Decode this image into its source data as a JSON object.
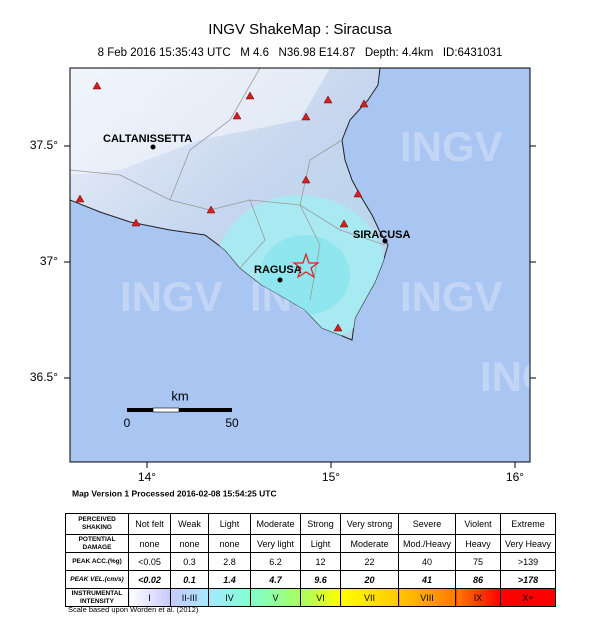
{
  "header": {
    "title": "INGV ShakeMap : Siracusa",
    "subtitle": "8 Feb 2016 15:35:43 UTC   M 4.6   N36.98 E14.87   Depth: 4.4km   ID:6431031"
  },
  "map": {
    "lat_labels": [
      "37.5°",
      "37°",
      "36.5°"
    ],
    "lon_labels": [
      "14°",
      "15°",
      "16°"
    ],
    "cities": [
      "CALTANISSETTA",
      "SIRACUSA",
      "RAGUSA"
    ],
    "watermark": "INGV",
    "scale_bar": {
      "unit": "km",
      "start": "0",
      "end": "50"
    }
  },
  "footer": "Map Version 1 Processed 2016-02-08 15:54:25 UTC",
  "table": {
    "rows": [
      [
        "PERCEIVED SHAKING",
        "Not felt",
        "Weak",
        "Light",
        "Moderate",
        "Strong",
        "Very strong",
        "Severe",
        "Violent",
        "Extreme"
      ],
      [
        "POTENTIAL DAMAGE",
        "none",
        "none",
        "none",
        "Very light",
        "Light",
        "Moderate",
        "Mod./Heavy",
        "Heavy",
        "Very Heavy"
      ],
      [
        "PEAK ACC.(%g)",
        "<0.05",
        "0.3",
        "2.8",
        "6.2",
        "12",
        "22",
        "40",
        "75",
        ">139"
      ],
      [
        "PEAK VEL.(cm/s)",
        "<0.02",
        "0.1",
        "1.4",
        "4.7",
        "9.6",
        "20",
        "41",
        "86",
        ">178"
      ],
      [
        "INSTRUMENTAL INTENSITY",
        "I",
        "II-III",
        "IV",
        "V",
        "VI",
        "VII",
        "VIII",
        "IX",
        "X+"
      ]
    ]
  },
  "note": "Scale based upon Worden et al. (2012)"
}
